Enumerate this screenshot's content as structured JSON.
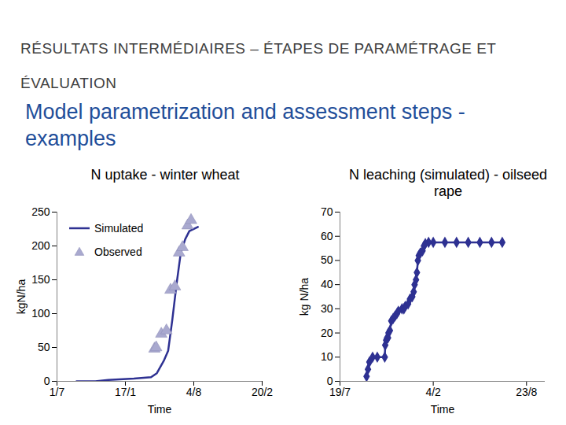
{
  "title": "RÉSULTATS INTERMÉDIAIRES – ÉTAPES DE PARAMÉTRAGE ET ÉVALUATION",
  "subtitle": "Model parametrization and assessment steps - examples",
  "chart_data": [
    {
      "type": "line",
      "title": "N uptake - winter wheat",
      "x_label": "Time",
      "y_label": "kgN/ha",
      "xlim": [
        0,
        600
      ],
      "xticks": [
        {
          "value": 0,
          "label": "1/7"
        },
        {
          "value": 200,
          "label": "17/1"
        },
        {
          "value": 400,
          "label": "4/8"
        },
        {
          "value": 600,
          "label": "20/2"
        }
      ],
      "ylim": [
        0,
        250
      ],
      "yticks": [
        0,
        50,
        100,
        150,
        200,
        250
      ],
      "legend": "top-left",
      "series": [
        {
          "name": "Simulated",
          "type": "line",
          "color": "#2e3192",
          "x": [
            57,
            112,
            150,
            225,
            275,
            292,
            312,
            325,
            337,
            350,
            362,
            375,
            387,
            412
          ],
          "values": [
            0,
            0,
            2,
            4,
            6,
            12,
            30,
            45,
            90,
            145,
            190,
            210,
            222,
            228
          ]
        },
        {
          "name": "Observed",
          "type": "scatter",
          "marker": "triangle",
          "color": "#a9a9cf",
          "x": [
            285,
            290,
            305,
            320,
            332,
            345,
            357,
            367,
            382,
            392
          ],
          "values": [
            48,
            50,
            70,
            75,
            135,
            140,
            190,
            198,
            230,
            238
          ]
        }
      ]
    },
    {
      "type": "line",
      "title": "N leaching (simulated) - oilseed rape",
      "x_label": "Time",
      "y_label": "kg N/ha",
      "xlim": [
        0,
        440
      ],
      "xticks": [
        {
          "value": 0,
          "label": "19/7"
        },
        {
          "value": 200,
          "label": "4/2"
        },
        {
          "value": 400,
          "label": "23/8"
        }
      ],
      "ylim": [
        0,
        70
      ],
      "yticks": [
        0,
        10,
        20,
        30,
        40,
        50,
        60,
        70
      ],
      "series": [
        {
          "color": "#2e3192",
          "marker": "diamond",
          "x": [
            57,
            60,
            63,
            70,
            80,
            96,
            97,
            99,
            101,
            103,
            104,
            107,
            110,
            114,
            118,
            122,
            125,
            133,
            137,
            140,
            146,
            150,
            155,
            158,
            160,
            163,
            165,
            167,
            169,
            172,
            177,
            180,
            183,
            190,
            200,
            225,
            250,
            275,
            300,
            325,
            348
          ],
          "values": [
            2,
            5,
            8,
            10,
            10,
            10,
            15,
            17,
            18,
            18,
            20,
            21,
            25,
            26,
            27,
            28,
            29,
            30,
            30,
            31,
            32,
            34,
            35,
            37,
            40,
            42,
            45,
            50,
            52,
            53,
            54,
            56,
            57,
            57.5,
            57.5,
            57.5,
            57.5,
            57.5,
            57.5,
            57.5,
            57.5
          ]
        }
      ]
    }
  ]
}
